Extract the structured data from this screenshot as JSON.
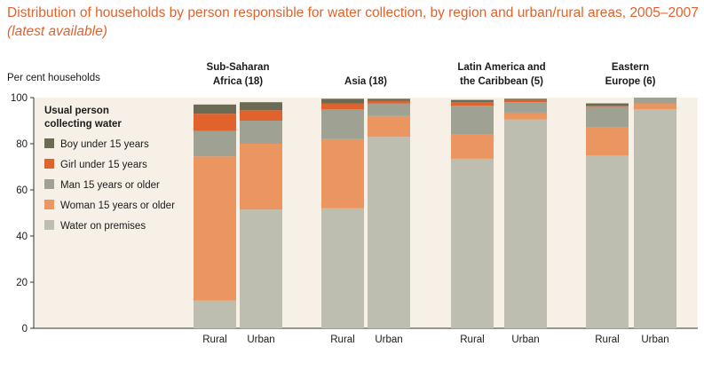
{
  "title_main": "Distribution of households by person responsible for water collection, by region and urban/rural areas, 2005–2007",
  "title_note": "(latest available)",
  "colors": {
    "title": "#e0622c",
    "Boy under 15 years": "#6b6b55",
    "Girl under 15 years": "#e0622c",
    "Man 15 years or older": "#9fa193",
    "Woman 15 years or older": "#eb9661",
    "Water on premises": "#bdbdb0",
    "panel_bg": "#f6f0e7"
  },
  "chart_data": {
    "type": "bar",
    "stacked": true,
    "ylabel": "Per cent households",
    "ylim": [
      0,
      100
    ],
    "yticks": [
      0,
      20,
      40,
      60,
      80,
      100
    ],
    "grid": false,
    "legend_title": "Usual person collecting water",
    "legend_position": "top-left",
    "regions": [
      {
        "name": "Sub-Saharan Africa (18)",
        "categories": [
          "Rural",
          "Urban"
        ]
      },
      {
        "name": "Asia (18)",
        "categories": [
          "Rural",
          "Urban"
        ]
      },
      {
        "name": "Latin America and the Caribbean (5)",
        "categories": [
          "Rural",
          "Urban"
        ]
      },
      {
        "name": "Eastern Europe (6)",
        "categories": [
          "Rural",
          "Urban"
        ]
      }
    ],
    "series": [
      {
        "name": "Water on premises",
        "values": [
          12,
          51.5,
          52,
          83,
          73.5,
          90.5,
          75,
          95
        ]
      },
      {
        "name": "Woman 15 years or older",
        "values": [
          62.5,
          28.5,
          30,
          9,
          10.5,
          3,
          12,
          2.5
        ]
      },
      {
        "name": "Man 15 years or older",
        "values": [
          11,
          10,
          13,
          5.5,
          12.5,
          4.5,
          9,
          2.5
        ]
      },
      {
        "name": "Girl under 15 years",
        "values": [
          7.5,
          4.5,
          2.5,
          1,
          1.5,
          1,
          0.5,
          0
        ]
      },
      {
        "name": "Boy under 15 years",
        "values": [
          4,
          3.5,
          2,
          1,
          1,
          0.5,
          1,
          0
        ]
      }
    ]
  }
}
